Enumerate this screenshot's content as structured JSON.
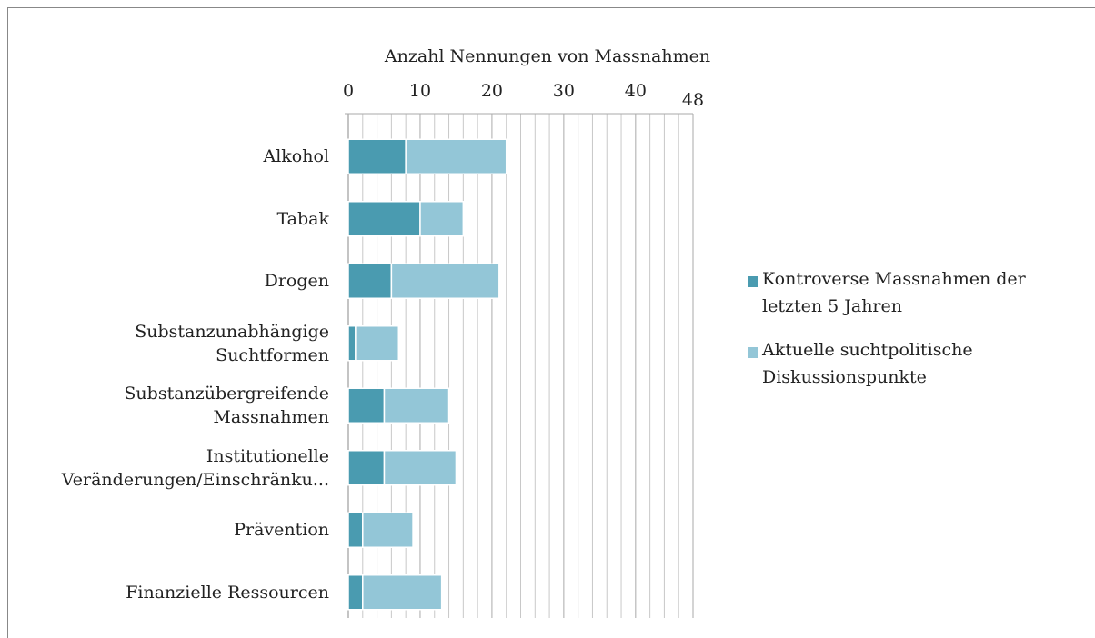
{
  "chart_data": {
    "type": "stacked_barh",
    "title": "Anzahl Nennungen von Massnahmen",
    "categories": [
      "Alkohol",
      "Tabak",
      "Drogen",
      "Substanzunabhängige Suchtformen",
      "Substanzübergreifende Massnahmen",
      "Institutionelle Veränderungen/Einschränku...",
      "Prävention",
      "Finanzielle Ressourcen"
    ],
    "series": [
      {
        "name": "Kontroverse Massnahmen der letzten 5 Jahren",
        "color": "#4a9bb0",
        "values": [
          8,
          10,
          6,
          1,
          5,
          5,
          2,
          2
        ]
      },
      {
        "name": "Aktuelle suchtpolitische Diskussionspunkte",
        "color": "#93c6d7",
        "values": [
          14,
          6,
          15,
          6,
          9,
          10,
          7,
          11
        ]
      }
    ],
    "xlim": [
      0,
      48
    ],
    "xticks": [
      0,
      10,
      20,
      30,
      40,
      48
    ],
    "xminorticks": [
      2,
      4,
      6,
      8,
      12,
      14,
      16,
      18,
      22,
      24,
      26,
      28,
      32,
      34,
      36,
      38,
      42,
      44,
      46
    ],
    "grid": true,
    "legend": "right"
  }
}
